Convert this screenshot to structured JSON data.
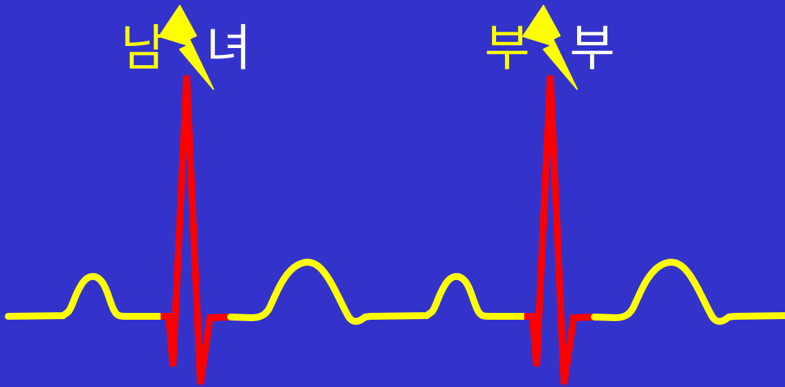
{
  "colors": {
    "background": "#3333cc",
    "baseline": "#ffff00",
    "qrs_spike": "#ff0000",
    "lightning": "#ffff00",
    "left_word_color": "#ffff00",
    "right_word_color": "#ffffff"
  },
  "icons": [
    "lightning-bolt-icon",
    "lightning-bolt-icon"
  ],
  "groups": [
    {
      "left_word": "남",
      "right_word": "녀"
    },
    {
      "left_word": "부",
      "right_word": "부"
    }
  ]
}
